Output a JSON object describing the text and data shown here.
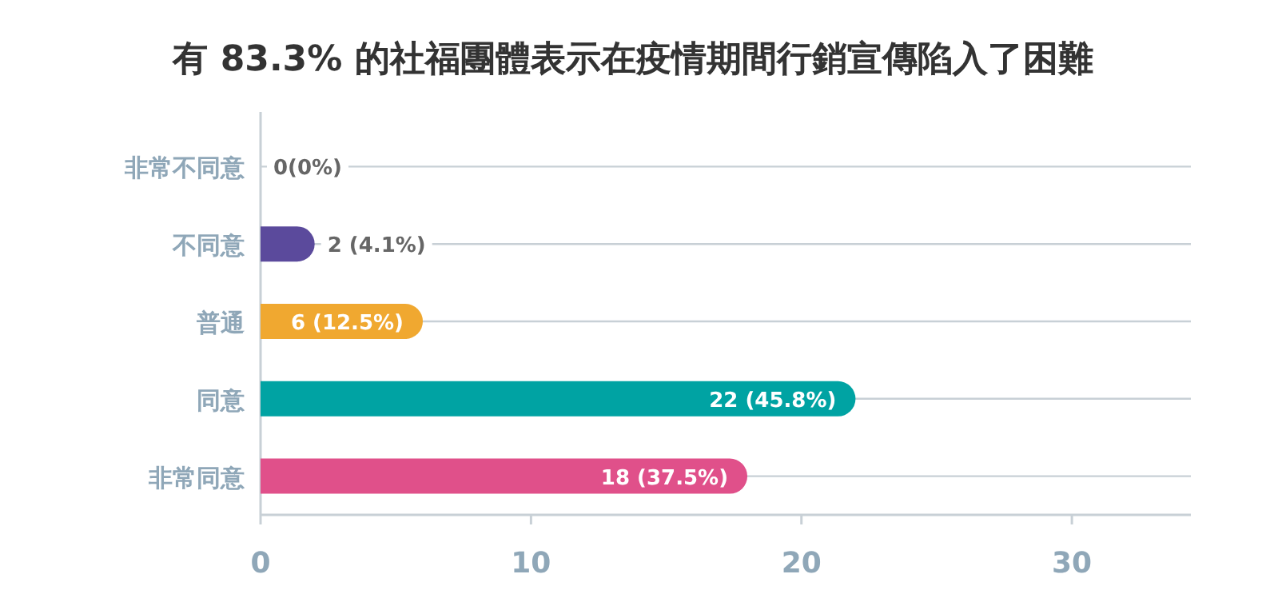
{
  "chart_data": {
    "type": "bar",
    "orientation": "horizontal",
    "title": "有 83.3% 的社福團體表示在疫情期間行銷宣傳陷入了困難",
    "categories": [
      "非常不同意",
      "不同意",
      "普通",
      "同意",
      "非常同意"
    ],
    "values": [
      0,
      2,
      6,
      22,
      18
    ],
    "value_labels": [
      "0(0%)",
      "2 (4.1%)",
      "6 (12.5%)",
      "22 (45.8%)",
      "18 (37.5%)"
    ],
    "colors": [
      "#9a9a9a",
      "#5b4a9c",
      "#f0a830",
      "#00a3a3",
      "#e0508a"
    ],
    "xlim": [
      0,
      34.4
    ],
    "xticks": [
      0,
      10,
      20,
      30
    ],
    "grid": "y"
  }
}
